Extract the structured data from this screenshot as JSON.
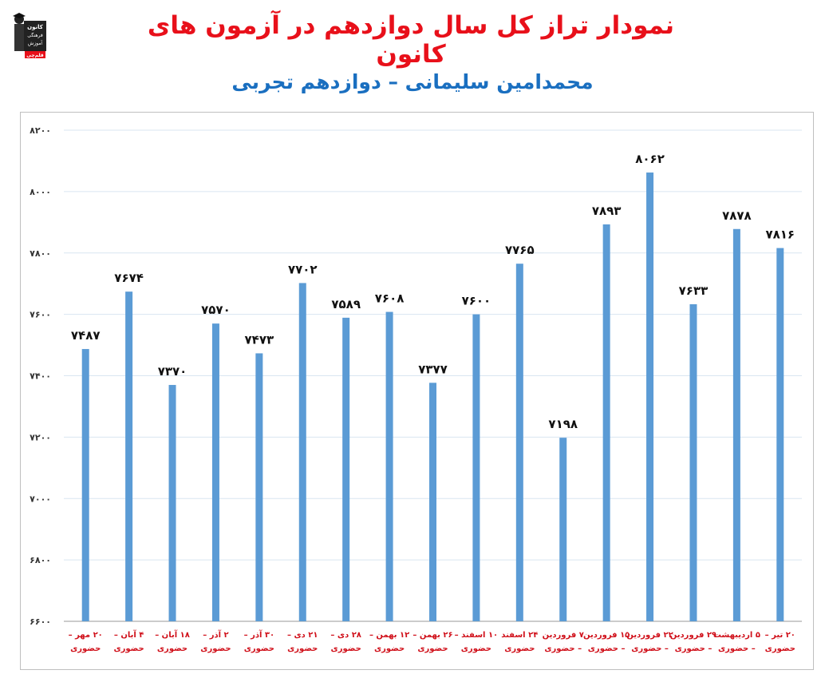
{
  "header": {
    "title": "نمودار تراز کل سال دوازدهم در آزمون های کانون",
    "subtitle": "محمدامین سلیمانی – دوازدهم تجربی"
  },
  "logo": {
    "icon": "kanoon-logo-icon",
    "lines": [
      "کانون",
      "فرهنگی",
      "آموزش",
      "قلم‌چی"
    ]
  },
  "colors": {
    "bar": "#5b9bd5",
    "title": "#e8101a",
    "subtitle": "#1a6fc0",
    "category": "#d0101a",
    "grid": "#d9e5f1"
  },
  "chart_data": {
    "type": "bar",
    "title": "نمودار تراز کل سال دوازدهم در آزمون های کانون",
    "subtitle": "محمدامین سلیمانی – دوازدهم تجربی",
    "ylim": [
      6600,
      8200
    ],
    "yticks": [
      6600,
      6800,
      7000,
      7200,
      7400,
      7600,
      7800,
      8000,
      8200
    ],
    "ytick_labels": [
      "۶۶۰۰",
      "۶۸۰۰",
      "۷۰۰۰",
      "۷۲۰۰",
      "۷۴۰۰",
      "۷۶۰۰",
      "۷۸۰۰",
      "۸۰۰۰",
      "۸۲۰۰"
    ],
    "grid": true,
    "categories": [
      [
        "۲۰ مهر –",
        "حضوری"
      ],
      [
        "۴ آبان –",
        "حضوری"
      ],
      [
        "۱۸ آبان –",
        "حضوری"
      ],
      [
        "۲ آذر –",
        "حضوری"
      ],
      [
        "۳۰ آذر –",
        "حضوری"
      ],
      [
        "۲۱ دی –",
        "حضوری"
      ],
      [
        "۲۸ دی –",
        "حضوری"
      ],
      [
        "۱۲ بهمن –",
        "حضوری"
      ],
      [
        "۲۶ بهمن –",
        "حضوری"
      ],
      [
        "۱۰ اسفند –",
        "حضوری"
      ],
      [
        "۲۴ اسفند",
        "حضوری"
      ],
      [
        "۷ فروردین",
        "– حضوری"
      ],
      [
        "۱۵ فروردین",
        "– حضوری"
      ],
      [
        "۲۲ فروردین",
        "– حضوری"
      ],
      [
        "۲۹ فروردین",
        "– حضوری"
      ],
      [
        "۵ اردیبهشت",
        "– حضوری"
      ],
      [
        "۲۰ تیر –",
        "حضوری"
      ]
    ],
    "values": [
      7487,
      7674,
      7370,
      7570,
      7473,
      7702,
      7589,
      7608,
      7377,
      7600,
      7765,
      7198,
      7893,
      8062,
      7633,
      7878,
      7816
    ],
    "value_labels": [
      "۷۴۸۷",
      "۷۶۷۴",
      "۷۳۷۰",
      "۷۵۷۰",
      "۷۴۷۳",
      "۷۷۰۲",
      "۷۵۸۹",
      "۷۶۰۸",
      "۷۳۷۷",
      "۷۶۰۰",
      "۷۷۶۵",
      "۷۱۹۸",
      "۷۸۹۳",
      "۸۰۶۲",
      "۷۶۳۳",
      "۷۸۷۸",
      "۷۸۱۶"
    ]
  }
}
